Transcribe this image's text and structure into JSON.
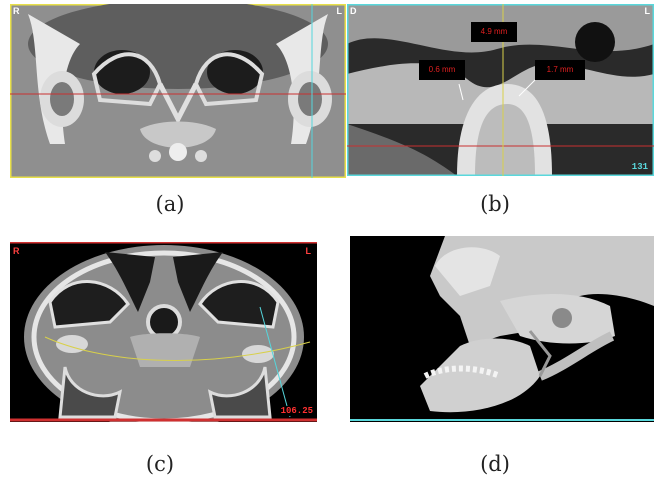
{
  "captions": {
    "a": "(a)",
    "b": "(b)",
    "c": "(c)",
    "d": "(d)"
  },
  "panel_a": {
    "corner_left": "R",
    "corner_right": "L"
  },
  "panel_b": {
    "corner_left": "D",
    "corner_right": "L",
    "measure_top": "4.9 mm",
    "measure_left": "0.6 mm",
    "measure_right": "1.7 mm",
    "slice_number": "131"
  },
  "panel_c": {
    "corner_left": "R",
    "corner_right": "L",
    "slice_value": "106.25"
  },
  "colors": {
    "crosshair_red": "#c83030",
    "crosshair_cyan": "#55d6dc",
    "crosshair_yellow": "#d8d04a",
    "frame_yellow": "#e8e04a",
    "frame_cyan": "#5ad8dc",
    "frame_red": "#d03030"
  }
}
